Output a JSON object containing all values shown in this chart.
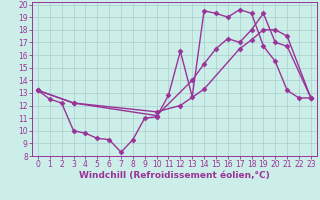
{
  "xlabel": "Windchill (Refroidissement éolien,°C)",
  "xlim": [
    -0.5,
    23.5
  ],
  "ylim": [
    8,
    20.2
  ],
  "xticks": [
    0,
    1,
    2,
    3,
    4,
    5,
    6,
    7,
    8,
    9,
    10,
    11,
    12,
    13,
    14,
    15,
    16,
    17,
    18,
    19,
    20,
    21,
    22,
    23
  ],
  "yticks": [
    8,
    9,
    10,
    11,
    12,
    13,
    14,
    15,
    16,
    17,
    18,
    19,
    20
  ],
  "background_color": "#cceee8",
  "grid_color": "#aacccc",
  "line_color": "#993399",
  "line1_x": [
    0,
    1,
    2,
    3,
    4,
    5,
    6,
    7,
    8,
    9,
    10,
    11,
    12,
    13,
    14,
    15,
    16,
    17,
    18,
    19,
    20,
    21,
    22,
    23
  ],
  "line1_y": [
    13.2,
    12.5,
    12.2,
    10.0,
    9.8,
    9.4,
    9.3,
    8.3,
    9.3,
    11.0,
    11.1,
    12.8,
    16.3,
    12.7,
    19.5,
    19.3,
    19.0,
    19.6,
    19.3,
    16.7,
    15.5,
    13.2,
    12.6,
    12.6
  ],
  "line2_x": [
    0,
    3,
    10,
    13,
    14,
    15,
    16,
    17,
    18,
    19,
    20,
    21,
    23
  ],
  "line2_y": [
    13.2,
    12.2,
    11.2,
    14.0,
    15.3,
    16.5,
    17.3,
    17.0,
    18.0,
    19.3,
    17.0,
    16.7,
    12.6
  ],
  "line3_x": [
    0,
    3,
    10,
    12,
    14,
    17,
    18,
    19,
    20,
    21,
    23
  ],
  "line3_y": [
    13.2,
    12.2,
    11.5,
    12.0,
    13.3,
    16.5,
    17.2,
    18.0,
    18.0,
    17.5,
    12.6
  ],
  "marker": "D",
  "markersize": 2.5,
  "linewidth": 1.0,
  "fontsize_ticks": 5.5,
  "fontsize_xlabel": 6.5
}
